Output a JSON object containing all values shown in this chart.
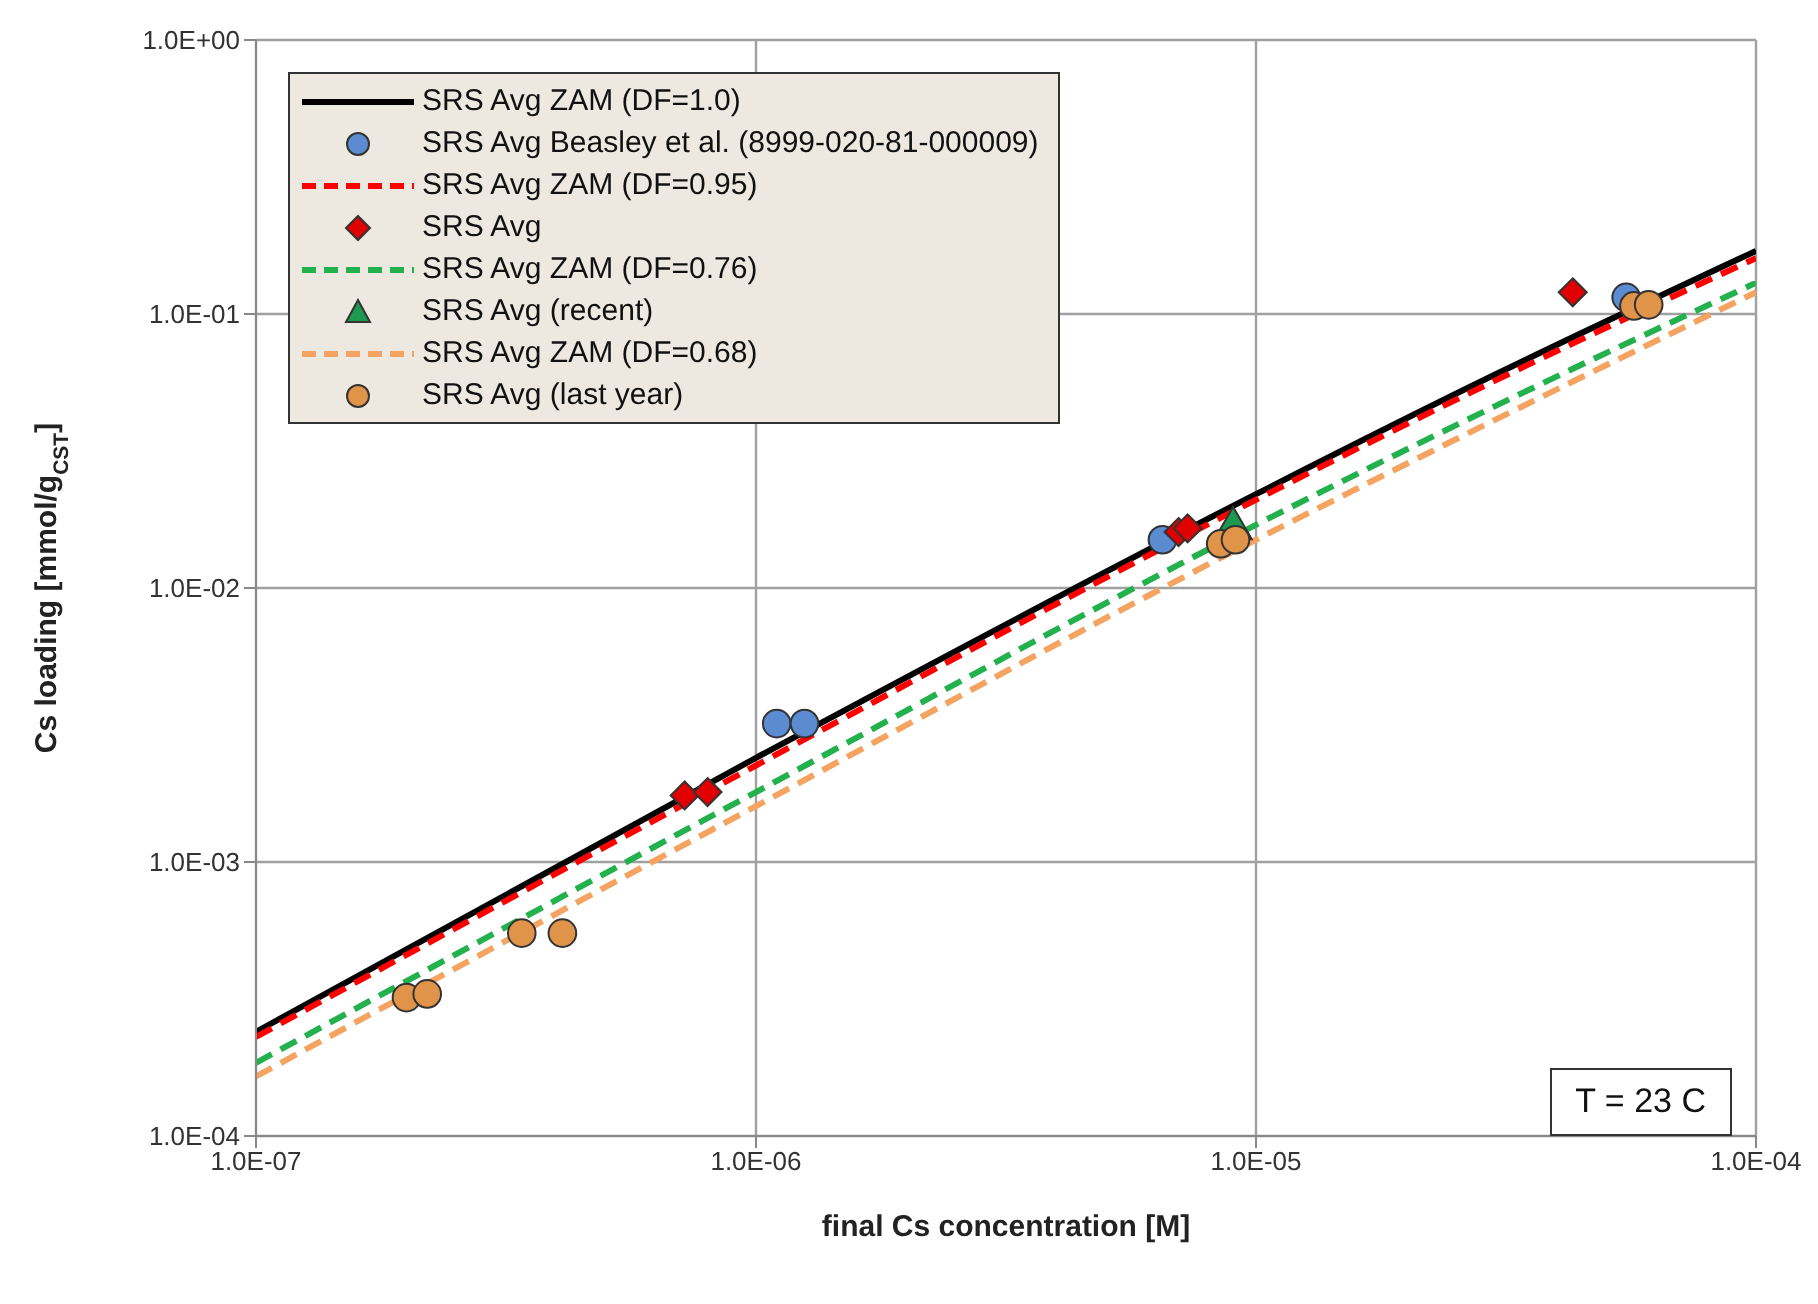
{
  "chart_data": {
    "type": "line",
    "xlabel": "final Cs concentration [M]",
    "ylabel": "Cs loading [mmol/g$_{CST}$]",
    "log": "xy",
    "grid": true,
    "legend": "top left",
    "xlim": [
      1e-07,
      0.0001
    ],
    "xticks": [
      {
        "value": 1e-07,
        "label": "1.0E-07"
      },
      {
        "value": 1e-06,
        "label": "1.0E-06"
      },
      {
        "value": 1e-05,
        "label": "1.0E-05"
      },
      {
        "value": 0.0001,
        "label": "1.0E-04"
      }
    ],
    "ylim": [
      0.0001,
      1
    ],
    "yticks": [
      {
        "value": 0.0001,
        "label": "1.0E-04"
      },
      {
        "value": 0.001,
        "label": "1.0E-03"
      },
      {
        "value": 0.01,
        "label": "1.0E-02"
      },
      {
        "value": 0.1,
        "label": "1.0E-01"
      },
      {
        "value": 1,
        "label": "1.0E+00"
      }
    ],
    "annotations": [
      "T = 23 C"
    ],
    "series": [
      {
        "name": "SRS Avg ZAM (DF=1.0)",
        "color": "#000000",
        "line_style": "solid",
        "x": [
          1e-07,
          1e-06,
          1e-05,
          3e-05,
          0.0001
        ],
        "values": [
          0.00024,
          0.0024,
          0.022,
          0.06,
          0.17
        ]
      },
      {
        "name": "SRS Avg Beasley et al. (8999-020-81-000009)",
        "type": "scatter",
        "color": "#5b8bd0",
        "marker": "circle",
        "x": [
          1.1e-06,
          1.25e-06,
          6.5e-06,
          5.5e-05
        ],
        "values": [
          0.0032,
          0.0032,
          0.015,
          0.115
        ]
      },
      {
        "name": "SRS Avg ZAM (DF=0.95)",
        "color": "#ff0000",
        "line_style": "dashed",
        "x": [
          1e-07,
          1e-06,
          1e-05,
          3e-05,
          0.0001
        ],
        "values": [
          0.00023,
          0.00225,
          0.021,
          0.057,
          0.16
        ]
      },
      {
        "name": "SRS Avg",
        "type": "scatter",
        "color": "#e00000",
        "marker": "diamond",
        "x": [
          7.2e-07,
          8e-07,
          7e-06,
          7.3e-06,
          4.3e-05
        ],
        "values": [
          0.00175,
          0.0018,
          0.016,
          0.0165,
          0.12
        ]
      },
      {
        "name": "SRS Avg ZAM (DF=0.76)",
        "color": "#22b14c",
        "line_style": "dashed",
        "x": [
          1e-07,
          1e-06,
          1e-05,
          3e-05,
          0.0001
        ],
        "values": [
          0.000185,
          0.0018,
          0.017,
          0.046,
          0.13
        ]
      },
      {
        "name": "SRS Avg (recent)",
        "type": "scatter",
        "color": "#1e9a50",
        "marker": "triangle",
        "x": [
          9e-06
        ],
        "values": [
          0.0165
        ]
      },
      {
        "name": "SRS Avg ZAM (DF=0.68)",
        "color": "#f4a460",
        "line_style": "dashed",
        "x": [
          1e-07,
          1e-06,
          1e-05,
          3e-05,
          0.0001
        ],
        "values": [
          0.000165,
          0.0016,
          0.015,
          0.041,
          0.12
        ]
      },
      {
        "name": "SRS Avg (last year)",
        "type": "scatter",
        "color": "#e0944a",
        "marker": "circle",
        "x": [
          2e-07,
          2.2e-07,
          3.4e-07,
          4.1e-07,
          8.5e-06,
          9.1e-06,
          5.7e-05,
          6.1e-05
        ],
        "values": [
          0.00032,
          0.00033,
          0.00055,
          0.00055,
          0.0145,
          0.015,
          0.107,
          0.108
        ]
      }
    ]
  }
}
